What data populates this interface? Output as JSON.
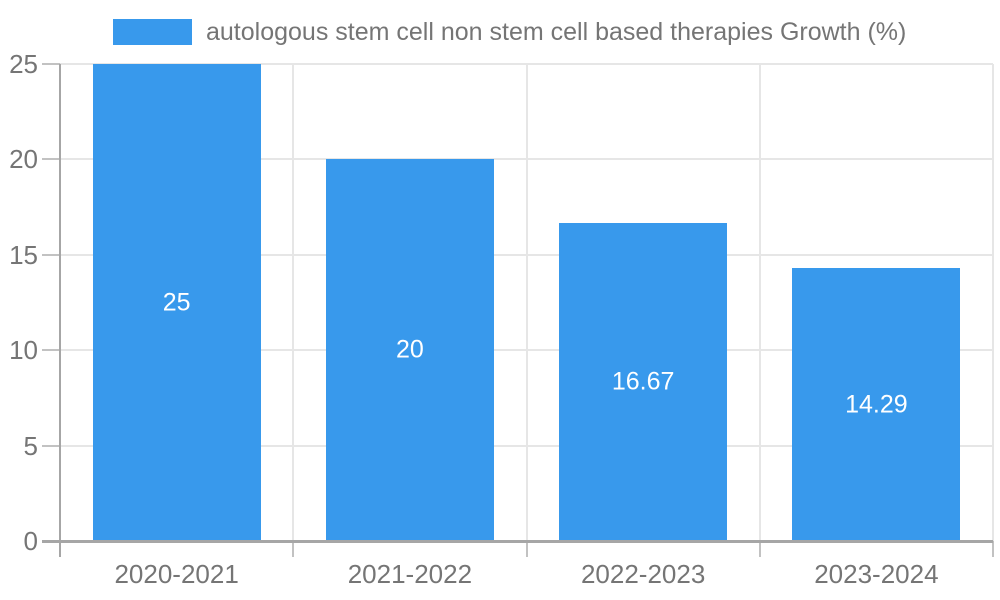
{
  "chart_data": {
    "type": "bar",
    "legend_label": "autologous stem cell non stem cell based therapies Growth (%)",
    "categories": [
      "2020-2021",
      "2021-2022",
      "2022-2023",
      "2023-2024"
    ],
    "values": [
      25,
      20,
      16.67,
      14.29
    ],
    "value_labels": [
      "25",
      "20",
      "16.67",
      "14.29"
    ],
    "ylim": [
      0,
      25
    ],
    "yticks": [
      0,
      5,
      10,
      15,
      20,
      25
    ],
    "ytick_labels": [
      "0",
      "5",
      "10",
      "15",
      "20",
      "25"
    ],
    "grid": true,
    "legend_position": "top-left",
    "colors": {
      "bar": "#3899ec",
      "value_label": "#ffffff",
      "tick_label": "#757575",
      "legend_text": "#757575",
      "axis_line": "#a6a6a6",
      "grid_line": "#e6e6e6",
      "tick_mark": "#c2c2c2",
      "background": "#ffffff"
    }
  }
}
